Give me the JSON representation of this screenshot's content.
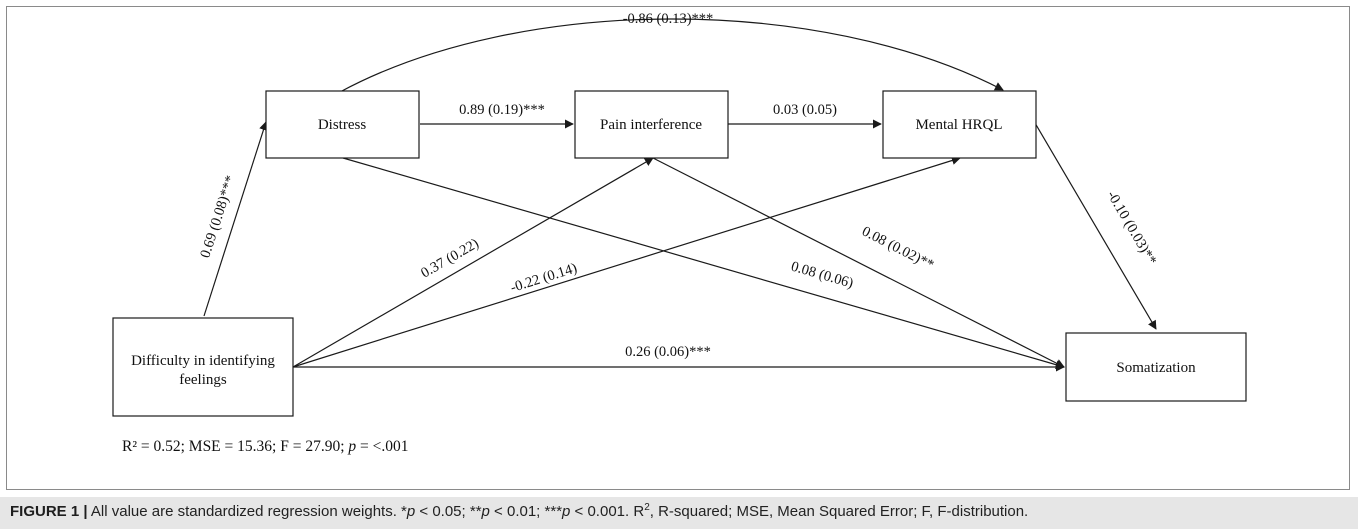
{
  "nodes": {
    "distress": "Distress",
    "pain": "Pain interference",
    "mental": "Mental HRQL",
    "difficulty_line1": "Difficulty in identifying",
    "difficulty_line2": "feelings",
    "somatization": "Somatization"
  },
  "edges": {
    "distress_to_mental": "-0.86 (0.13)***",
    "distress_to_pain": "0.89 (0.19)***",
    "pain_to_mental": "0.03 (0.05)",
    "difficulty_to_distress": "0.69 (0.08)***",
    "mental_to_somatization": "-0.10 (0.03)**",
    "difficulty_to_pain": "0.37 (0.22)",
    "difficulty_to_mental": "-0.22 (0.14)",
    "distress_to_somatization": "0.08 (0.06)",
    "pain_to_somatization": "0.08 (0.02)**",
    "difficulty_to_somatization": "0.26 (0.06)***"
  },
  "stats": {
    "r2": "R² = 0.52; MSE = 15.36; F = 27.90; ",
    "p_symbol": "p",
    "p_value": " = <.001"
  },
  "caption": {
    "label": "FIGURE 1 |",
    "part1": " All value are standardized regression weights. *",
    "p1": "p",
    "part2": " < 0.05; **",
    "p2": "p",
    "part3": " < 0.01; ***",
    "p3": "p",
    "part4": " < 0.001. R",
    "sup": "2",
    "part5": ", R-squared; MSE, Mean Squared Error; F, F-distribution."
  },
  "colors": {
    "line": "#1a1a1a",
    "frame": "#8a8a8a",
    "caption_bg": "#e6e6e6"
  }
}
